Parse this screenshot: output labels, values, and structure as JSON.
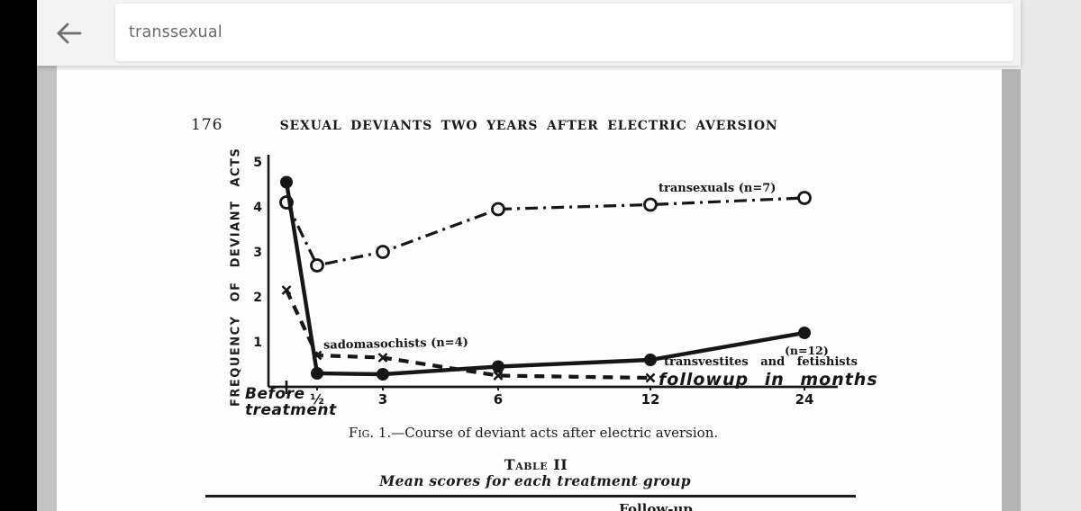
{
  "browser": {
    "search_query": "transsexual",
    "back_icon": "arrow-left"
  },
  "android_nav": {
    "recents_icon": "square-outline",
    "home_icon": "circle-outline",
    "back_icon": "triangle-left-outline"
  },
  "document": {
    "page_number": "176",
    "running_title": "SEXUAL DEVIANTS TWO YEARS AFTER ELECTRIC AVERSION",
    "figure_caption_label": "Fig. 1.",
    "figure_caption_text": "—Course of deviant acts after electric aversion.",
    "table_label": "Table II",
    "table_subtitle": "Mean scores for each treatment group",
    "truncated_table_header": "Follow-up"
  },
  "chart_data": {
    "type": "line",
    "title": "",
    "xlabel": "",
    "ylabel": "FREQUENCY OF DEVIANT ACTS",
    "ylim": [
      0,
      5
    ],
    "y_ticks": [
      1,
      2,
      3,
      4,
      5
    ],
    "x_tick_labels": [
      "Before treatment",
      "½",
      "3",
      "6",
      "12",
      "24"
    ],
    "x_months": [
      0,
      0.5,
      3,
      6,
      12,
      24
    ],
    "x_axis_annotation": "followup in months",
    "grid": false,
    "legend_position": "inline-annotations",
    "ink_color": "#161616",
    "series": [
      {
        "name": "transexuals",
        "n": 7,
        "label": "transexuals (n=7)",
        "line": "dash-dot",
        "marker": "open-circle",
        "values": [
          4.1,
          2.7,
          3.0,
          3.95,
          4.05,
          4.2
        ]
      },
      {
        "name": "transvestites and fetishists",
        "n": 12,
        "label_n": "(n=12)",
        "label": "transvestites and fetishists",
        "line": "solid",
        "marker": "filled-circle",
        "values": [
          4.55,
          0.3,
          0.28,
          0.45,
          0.6,
          1.2
        ]
      },
      {
        "name": "sadomasochists",
        "n": 4,
        "label": "sadomasochists (n=4)",
        "line": "dashed",
        "marker": "x",
        "values": [
          2.15,
          0.7,
          0.65,
          0.25,
          0.2,
          null
        ]
      }
    ]
  }
}
